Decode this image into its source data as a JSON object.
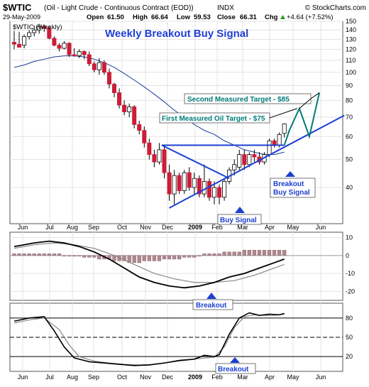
{
  "header": {
    "symbol": "$WTIC",
    "name": "(Oil - Light Crude - Continuous Contract (EOD))",
    "exchange": "INDX",
    "watermark": "© StockCharts.com",
    "date": "29-May-2009",
    "open_label": "Open",
    "open": "61.50",
    "high_label": "High",
    "high": "66.64",
    "low_label": "Low",
    "low": "59.53",
    "close_label": "Close",
    "close": "66.31",
    "chg_label": "Chg",
    "chg": "+4.64 (+7.52%)",
    "chg_arrow_icon": "up-arrow-icon"
  },
  "colors": {
    "background": "#ffffff",
    "panel_border": "#555555",
    "grid": "#e3e3e3",
    "up_candle": "#ffffff",
    "down_candle": "#cc1c38",
    "ma_line": "#1c3a9c",
    "title_blue": "#1f3fd6",
    "annotation_blue": "#1b3fd1",
    "target_green": "#007a7a",
    "histogram": "#b08890",
    "macd_line": "#000000",
    "signal_line": "#888888",
    "stoch_fast": "#000000",
    "stoch_slow": "#888888"
  },
  "chart_data": [
    {
      "type": "candlestick",
      "panel": "price",
      "legend": "$WTIC (Weekly)",
      "title": "Weekly Breakout Buy Signal",
      "y_scale": "log",
      "ylim": [
        30,
        150
      ],
      "y_ticks": [
        40,
        50,
        60,
        70,
        80,
        90,
        100,
        110,
        120,
        130,
        140,
        150
      ],
      "x_ticks": [
        "Jun",
        "Jul",
        "Aug",
        "Sep",
        "Oct",
        "Nov",
        "Dec",
        "2009",
        "Feb",
        "Mar",
        "Apr",
        "May",
        "Jun"
      ],
      "candles": [
        {
          "week": 0,
          "o": 127,
          "h": 139,
          "l": 120,
          "c": 125
        },
        {
          "week": 1,
          "o": 125,
          "h": 138,
          "l": 122,
          "c": 122
        },
        {
          "week": 2,
          "o": 124,
          "h": 135,
          "l": 121,
          "c": 133
        },
        {
          "week": 3,
          "o": 133,
          "h": 140,
          "l": 130,
          "c": 137
        },
        {
          "week": 4,
          "o": 137,
          "h": 145,
          "l": 133,
          "c": 140
        },
        {
          "week": 5,
          "o": 140,
          "h": 147,
          "l": 136,
          "c": 144
        },
        {
          "week": 6,
          "o": 144,
          "h": 146,
          "l": 138,
          "c": 142
        },
        {
          "week": 7,
          "o": 142,
          "h": 144,
          "l": 130,
          "c": 131
        },
        {
          "week": 8,
          "o": 131,
          "h": 133,
          "l": 123,
          "c": 124
        },
        {
          "week": 9,
          "o": 124,
          "h": 126,
          "l": 118,
          "c": 121
        },
        {
          "week": 10,
          "o": 121,
          "h": 128,
          "l": 120,
          "c": 126
        },
        {
          "week": 11,
          "o": 126,
          "h": 127,
          "l": 113,
          "c": 115
        },
        {
          "week": 12,
          "o": 115,
          "h": 121,
          "l": 113,
          "c": 114
        },
        {
          "week": 13,
          "o": 114,
          "h": 120,
          "l": 112,
          "c": 118
        },
        {
          "week": 14,
          "o": 118,
          "h": 119,
          "l": 111,
          "c": 115
        },
        {
          "week": 15,
          "o": 115,
          "h": 118,
          "l": 105,
          "c": 107
        },
        {
          "week": 16,
          "o": 107,
          "h": 109,
          "l": 100,
          "c": 102
        },
        {
          "week": 17,
          "o": 102,
          "h": 112,
          "l": 98,
          "c": 108
        },
        {
          "week": 18,
          "o": 108,
          "h": 110,
          "l": 98,
          "c": 100
        },
        {
          "week": 19,
          "o": 100,
          "h": 103,
          "l": 88,
          "c": 91
        },
        {
          "week": 20,
          "o": 91,
          "h": 92,
          "l": 82,
          "c": 85
        },
        {
          "week": 21,
          "o": 85,
          "h": 88,
          "l": 75,
          "c": 77
        },
        {
          "week": 22,
          "o": 77,
          "h": 80,
          "l": 71,
          "c": 73
        },
        {
          "week": 23,
          "o": 73,
          "h": 78,
          "l": 70,
          "c": 76
        },
        {
          "week": 24,
          "o": 76,
          "h": 77,
          "l": 64,
          "c": 66
        },
        {
          "week": 25,
          "o": 66,
          "h": 68,
          "l": 61,
          "c": 63
        },
        {
          "week": 26,
          "o": 63,
          "h": 65,
          "l": 55,
          "c": 57
        },
        {
          "week": 27,
          "o": 57,
          "h": 59,
          "l": 50,
          "c": 52
        },
        {
          "week": 28,
          "o": 52,
          "h": 54,
          "l": 47,
          "c": 49
        },
        {
          "week": 29,
          "o": 49,
          "h": 57,
          "l": 48,
          "c": 54
        },
        {
          "week": 30,
          "o": 54,
          "h": 56,
          "l": 43,
          "c": 45
        },
        {
          "week": 31,
          "o": 45,
          "h": 48,
          "l": 36,
          "c": 38
        },
        {
          "week": 32,
          "o": 38,
          "h": 46,
          "l": 35,
          "c": 44
        },
        {
          "week": 33,
          "o": 44,
          "h": 45,
          "l": 38,
          "c": 39
        },
        {
          "week": 34,
          "o": 39,
          "h": 46,
          "l": 38,
          "c": 45
        },
        {
          "week": 35,
          "o": 45,
          "h": 47,
          "l": 39,
          "c": 40
        },
        {
          "week": 36,
          "o": 40,
          "h": 45,
          "l": 38,
          "c": 43
        },
        {
          "week": 37,
          "o": 43,
          "h": 44,
          "l": 37,
          "c": 38
        },
        {
          "week": 38,
          "o": 38,
          "h": 48,
          "l": 37,
          "c": 42
        },
        {
          "week": 39,
          "o": 42,
          "h": 43,
          "l": 36,
          "c": 37
        },
        {
          "week": 40,
          "o": 37,
          "h": 42,
          "l": 35,
          "c": 40
        },
        {
          "week": 41,
          "o": 40,
          "h": 41,
          "l": 35,
          "c": 37
        },
        {
          "week": 42,
          "o": 37,
          "h": 43,
          "l": 36,
          "c": 42
        },
        {
          "week": 43,
          "o": 42,
          "h": 47,
          "l": 41,
          "c": 46
        },
        {
          "week": 44,
          "o": 46,
          "h": 50,
          "l": 44,
          "c": 48
        },
        {
          "week": 45,
          "o": 47,
          "h": 54,
          "l": 46,
          "c": 52
        },
        {
          "week": 46,
          "o": 52,
          "h": 54,
          "l": 46,
          "c": 48
        },
        {
          "week": 47,
          "o": 48,
          "h": 53,
          "l": 47,
          "c": 52
        },
        {
          "week": 48,
          "o": 52,
          "h": 54,
          "l": 49,
          "c": 51
        },
        {
          "week": 49,
          "o": 51,
          "h": 53,
          "l": 48,
          "c": 49
        },
        {
          "week": 50,
          "o": 49,
          "h": 53,
          "l": 48,
          "c": 52
        },
        {
          "week": 51,
          "o": 52,
          "h": 59,
          "l": 51,
          "c": 58
        },
        {
          "week": 52,
          "o": 58,
          "h": 59,
          "l": 55,
          "c": 56
        },
        {
          "week": 53,
          "o": 56,
          "h": 62,
          "l": 55,
          "c": 61
        },
        {
          "week": 54,
          "o": 61.5,
          "h": 66.64,
          "l": 59.53,
          "c": 66.31
        }
      ],
      "moving_average": [
        {
          "week": 0,
          "v": 104
        },
        {
          "week": 2,
          "v": 106
        },
        {
          "week": 4,
          "v": 109
        },
        {
          "week": 6,
          "v": 111
        },
        {
          "week": 8,
          "v": 113
        },
        {
          "week": 10,
          "v": 114
        },
        {
          "week": 12,
          "v": 114
        },
        {
          "week": 14,
          "v": 113
        },
        {
          "week": 16,
          "v": 111
        },
        {
          "week": 18,
          "v": 108
        },
        {
          "week": 20,
          "v": 104
        },
        {
          "week": 22,
          "v": 99
        },
        {
          "week": 24,
          "v": 94
        },
        {
          "week": 26,
          "v": 89
        },
        {
          "week": 28,
          "v": 84
        },
        {
          "week": 30,
          "v": 79
        },
        {
          "week": 32,
          "v": 74
        },
        {
          "week": 34,
          "v": 70
        },
        {
          "week": 36,
          "v": 66
        },
        {
          "week": 38,
          "v": 63
        },
        {
          "week": 40,
          "v": 61
        },
        {
          "week": 42,
          "v": 58
        },
        {
          "week": 44,
          "v": 56
        },
        {
          "week": 46,
          "v": 54
        },
        {
          "week": 48,
          "v": 53
        },
        {
          "week": 50,
          "v": 52
        },
        {
          "week": 52,
          "v": 52
        },
        {
          "week": 54,
          "v": 53
        }
      ],
      "annotations": {
        "first_target": "First Measured Oil Target - $75",
        "second_target": "Second Measured Target - $85",
        "breakout_buy": [
          "Breakout",
          "Buy Signal"
        ],
        "buy_signal": "Buy Signal"
      }
    },
    {
      "type": "macd",
      "panel": "macd",
      "y_ticks": [
        10,
        0,
        -10,
        -20
      ],
      "macd": [
        {
          "week": 0,
          "v": 5
        },
        {
          "week": 4,
          "v": 7
        },
        {
          "week": 7,
          "v": 8
        },
        {
          "week": 10,
          "v": 7
        },
        {
          "week": 13,
          "v": 5
        },
        {
          "week": 16,
          "v": 2
        },
        {
          "week": 19,
          "v": -2
        },
        {
          "week": 22,
          "v": -7
        },
        {
          "week": 25,
          "v": -12
        },
        {
          "week": 28,
          "v": -15
        },
        {
          "week": 31,
          "v": -17
        },
        {
          "week": 34,
          "v": -18
        },
        {
          "week": 37,
          "v": -17
        },
        {
          "week": 40,
          "v": -15
        },
        {
          "week": 43,
          "v": -12
        },
        {
          "week": 46,
          "v": -10
        },
        {
          "week": 49,
          "v": -7
        },
        {
          "week": 52,
          "v": -4
        },
        {
          "week": 54,
          "v": -2
        }
      ],
      "signal": [
        {
          "week": 0,
          "v": 4
        },
        {
          "week": 4,
          "v": 6
        },
        {
          "week": 8,
          "v": 7
        },
        {
          "week": 12,
          "v": 6
        },
        {
          "week": 16,
          "v": 4
        },
        {
          "week": 20,
          "v": 0
        },
        {
          "week": 24,
          "v": -5
        },
        {
          "week": 28,
          "v": -10
        },
        {
          "week": 32,
          "v": -13
        },
        {
          "week": 36,
          "v": -15
        },
        {
          "week": 40,
          "v": -15
        },
        {
          "week": 44,
          "v": -14
        },
        {
          "week": 48,
          "v": -11
        },
        {
          "week": 52,
          "v": -7
        },
        {
          "week": 54,
          "v": -5
        }
      ],
      "histogram": [
        1,
        1,
        1,
        1,
        1,
        1,
        1,
        1,
        1,
        1,
        0,
        0,
        0,
        0,
        -1,
        -1,
        -1,
        -2,
        -2,
        -2,
        -3,
        -3,
        -3,
        -4,
        -4,
        -4,
        -3,
        -3,
        -3,
        -3,
        -2,
        -2,
        -2,
        -2,
        -1,
        -1,
        -1,
        0,
        1,
        1,
        1,
        1,
        2,
        2,
        2,
        2,
        3,
        3,
        3,
        3,
        3,
        3,
        3,
        3,
        3
      ],
      "annotation": "Breakout"
    },
    {
      "type": "stochastic",
      "panel": "stochastic",
      "y_ticks": [
        80,
        50,
        20
      ],
      "fast": [
        {
          "week": 0,
          "v": 75
        },
        {
          "week": 3,
          "v": 80
        },
        {
          "week": 6,
          "v": 82
        },
        {
          "week": 8,
          "v": 60
        },
        {
          "week": 10,
          "v": 35
        },
        {
          "week": 12,
          "v": 18
        },
        {
          "week": 15,
          "v": 12
        },
        {
          "week": 18,
          "v": 10
        },
        {
          "week": 21,
          "v": 8
        },
        {
          "week": 24,
          "v": 6
        },
        {
          "week": 27,
          "v": 7
        },
        {
          "week": 30,
          "v": 10
        },
        {
          "week": 33,
          "v": 14
        },
        {
          "week": 36,
          "v": 16
        },
        {
          "week": 38,
          "v": 22
        },
        {
          "week": 40,
          "v": 20
        },
        {
          "week": 41,
          "v": 23
        },
        {
          "week": 43,
          "v": 55
        },
        {
          "week": 45,
          "v": 80
        },
        {
          "week": 47,
          "v": 88
        },
        {
          "week": 49,
          "v": 84
        },
        {
          "week": 51,
          "v": 86
        },
        {
          "week": 53,
          "v": 85
        },
        {
          "week": 54,
          "v": 87
        }
      ],
      "slow": [
        {
          "week": 0,
          "v": 72
        },
        {
          "week": 3,
          "v": 77
        },
        {
          "week": 6,
          "v": 80
        },
        {
          "week": 9,
          "v": 62
        },
        {
          "week": 11,
          "v": 38
        },
        {
          "week": 13,
          "v": 20
        },
        {
          "week": 16,
          "v": 13
        },
        {
          "week": 19,
          "v": 10
        },
        {
          "week": 22,
          "v": 8
        },
        {
          "week": 25,
          "v": 7
        },
        {
          "week": 28,
          "v": 8
        },
        {
          "week": 31,
          "v": 11
        },
        {
          "week": 34,
          "v": 14
        },
        {
          "week": 37,
          "v": 17
        },
        {
          "week": 40,
          "v": 19
        },
        {
          "week": 42,
          "v": 35
        },
        {
          "week": 44,
          "v": 65
        },
        {
          "week": 46,
          "v": 82
        },
        {
          "week": 48,
          "v": 85
        },
        {
          "week": 50,
          "v": 84
        },
        {
          "week": 52,
          "v": 84
        },
        {
          "week": 54,
          "v": 86
        }
      ],
      "x_ticks": [
        "Jun",
        "Jul",
        "Aug",
        "Sep",
        "Oct",
        "Nov",
        "Dec",
        "2009",
        "Feb",
        "Mar",
        "Apr",
        "May",
        "Jun"
      ],
      "annotation": "Breakout"
    }
  ]
}
